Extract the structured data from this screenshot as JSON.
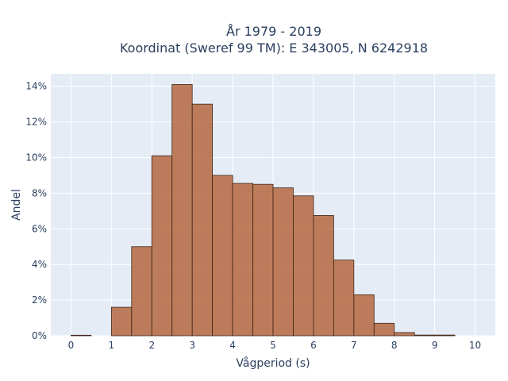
{
  "chart_data": {
    "type": "bar",
    "title_line1": "År 1979 - 2019",
    "title_line2": "Koordinat (Sweref 99 TM): E 343005, N 6242918",
    "xlabel": "Vågperiod (s)",
    "ylabel": "Andel",
    "xlim": [
      -0.5,
      10.5
    ],
    "ylim": [
      0,
      14.7
    ],
    "x_ticks": [
      0,
      1,
      2,
      3,
      4,
      5,
      6,
      7,
      8,
      9,
      10
    ],
    "y_ticks": [
      0,
      2,
      4,
      6,
      8,
      10,
      12,
      14
    ],
    "y_tick_suffix": "%",
    "bin_width": 0.5,
    "bins": [
      {
        "x0": 0.0,
        "x1": 0.5,
        "value": 0.03
      },
      {
        "x0": 0.5,
        "x1": 1.0,
        "value": 0.0
      },
      {
        "x0": 1.0,
        "x1": 1.5,
        "value": 1.6
      },
      {
        "x0": 1.5,
        "x1": 2.0,
        "value": 5.0
      },
      {
        "x0": 2.0,
        "x1": 2.5,
        "value": 10.1
      },
      {
        "x0": 2.5,
        "x1": 3.0,
        "value": 14.1
      },
      {
        "x0": 3.0,
        "x1": 3.5,
        "value": 13.0
      },
      {
        "x0": 3.5,
        "x1": 4.0,
        "value": 9.0
      },
      {
        "x0": 4.0,
        "x1": 4.5,
        "value": 8.55
      },
      {
        "x0": 4.5,
        "x1": 5.0,
        "value": 8.5
      },
      {
        "x0": 5.0,
        "x1": 5.5,
        "value": 8.3
      },
      {
        "x0": 5.5,
        "x1": 6.0,
        "value": 7.85
      },
      {
        "x0": 6.0,
        "x1": 6.5,
        "value": 6.75
      },
      {
        "x0": 6.5,
        "x1": 7.0,
        "value": 4.25
      },
      {
        "x0": 7.0,
        "x1": 7.5,
        "value": 2.3
      },
      {
        "x0": 7.5,
        "x1": 8.0,
        "value": 0.7
      },
      {
        "x0": 8.0,
        "x1": 8.5,
        "value": 0.18
      },
      {
        "x0": 8.5,
        "x1": 9.0,
        "value": 0.04
      },
      {
        "x0": 9.0,
        "x1": 9.5,
        "value": 0.04
      },
      {
        "x0": 9.5,
        "x1": 10.0,
        "value": 0.0
      }
    ],
    "grid": true,
    "legend": "none",
    "colors": {
      "bar_fill": "#b5693f",
      "bar_stroke": "#3d2416",
      "plot_bg": "#e5ecf6",
      "grid": "#ffffff"
    }
  }
}
